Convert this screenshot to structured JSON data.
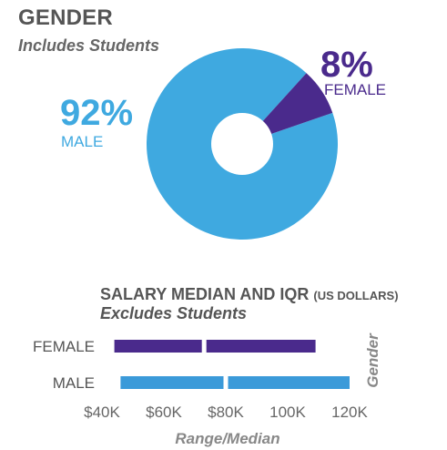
{
  "chart_data": [
    {
      "type": "pie",
      "title": "GENDER",
      "subtitle": "Includes Students",
      "slices": [
        {
          "label": "MALE",
          "value": 92,
          "display": "92%",
          "color": "#3fa9e0"
        },
        {
          "label": "FEMALE",
          "value": 8,
          "display": "8%",
          "color": "#4a2a8c"
        }
      ],
      "donut": true
    },
    {
      "type": "bar",
      "title": "SALARY MEDIAN AND IQR",
      "title_units": "(US DOLLARS)",
      "subtitle": "Excludes Students",
      "xlabel": "Range/Median",
      "ylabel": "Gender",
      "xlim": [
        40000,
        120000
      ],
      "x_ticks": [
        40000,
        60000,
        80000,
        100000,
        120000
      ],
      "x_tick_labels": [
        "$40K",
        "$60K",
        "$80K",
        "100K",
        "120K"
      ],
      "series": [
        {
          "name": "FEMALE",
          "q1": 44000,
          "median": 73000,
          "q3": 109000,
          "color": "#4a2a8c"
        },
        {
          "name": "MALE",
          "q1": 46000,
          "median": 80000,
          "q3": 120000,
          "color": "#3b9ad9"
        }
      ]
    }
  ]
}
